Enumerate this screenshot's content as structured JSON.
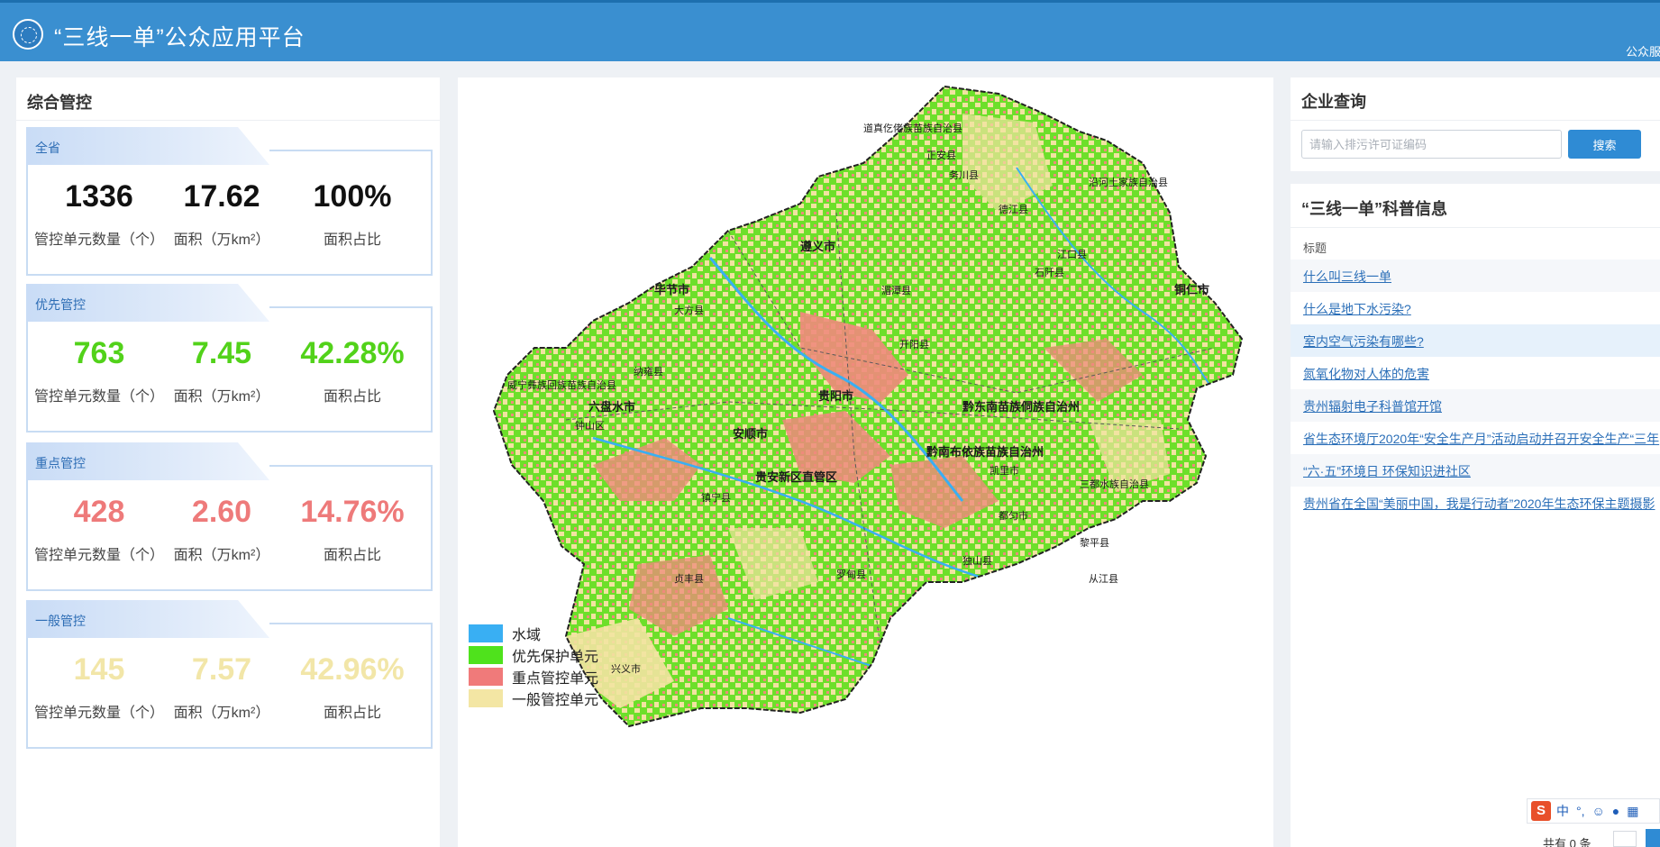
{
  "header": {
    "title": "“三线一单”公众应用平台",
    "user": "公众服务"
  },
  "left": {
    "title": "综合管控",
    "cards": [
      {
        "tab": "全省",
        "count": "1336",
        "count_label": "管控单元数量（个）",
        "area": "17.62",
        "area_label": "面积（万km²）",
        "ratio": "100%",
        "ratio_label": "面积占比",
        "color": "#111111"
      },
      {
        "tab": "优先管控",
        "count": "763",
        "count_label": "管控单元数量（个）",
        "area": "7.45",
        "area_label": "面积（万km²）",
        "ratio": "42.28%",
        "ratio_label": "面积占比",
        "color": "#52d21a"
      },
      {
        "tab": "重点管控",
        "count": "428",
        "count_label": "管控单元数量（个）",
        "area": "2.60",
        "area_label": "面积（万km²）",
        "ratio": "14.76%",
        "ratio_label": "面积占比",
        "color": "#ee7a7a"
      },
      {
        "tab": "一般管控",
        "count": "145",
        "count_label": "管控单元数量（个）",
        "area": "7.57",
        "area_label": "面积（万km²）",
        "ratio": "42.96%",
        "ratio_label": "面积占比",
        "color": "#f2e6a8"
      }
    ]
  },
  "map": {
    "legend": [
      {
        "label": "水域",
        "color": "#39aff3"
      },
      {
        "label": "优先保护单元",
        "color": "#4fe21c"
      },
      {
        "label": "重点管控单元",
        "color": "#f07a7a"
      },
      {
        "label": "一般管控单元",
        "color": "#f3e6a4"
      }
    ],
    "places": [
      "遵义市",
      "贵阳市",
      "毕节市",
      "六盘水市",
      "安顺市",
      "铜仁市",
      "黔南布依族苗族自治州",
      "黔东南苗族侗族自治州",
      "贵安新区直管区",
      "大方县",
      "开阳县",
      "务川县",
      "江口县",
      "兴义市",
      "凯里市",
      "从江县",
      "黎平县",
      "正安县",
      "德江县",
      "湄潭县",
      "纳雍县",
      "镇宁县",
      "罗甸县",
      "都匀市",
      "石阡县",
      "道真仡佬族苗族自治县",
      "沿河土家族自治县",
      "威宁彝族回族苗族自治县",
      "钟山区",
      "贞丰县",
      "独山县",
      "三都水族自治县"
    ]
  },
  "query": {
    "title": "企业查询",
    "placeholder": "请输入排污许可证编码",
    "button": "搜索"
  },
  "info": {
    "title": "“三线一单”科普信息",
    "column": "标题",
    "items": [
      "什么叫三线一单",
      "什么是地下水污染?",
      "室内空气污染有哪些?",
      "氮氧化物对人体的危害",
      "贵州辐射电子科普馆开馆",
      "省生态环境厅2020年“安全生产月”活动启动并召开安全生产“三年",
      "“六·五”环境日 环保知识进社区",
      "贵州省在全国“美丽中国，我是行动者”2020年生态环保主题摄影"
    ]
  },
  "ime": {
    "mode": "中",
    "punct": "°,"
  },
  "pager": {
    "text": "共有 0 条"
  }
}
